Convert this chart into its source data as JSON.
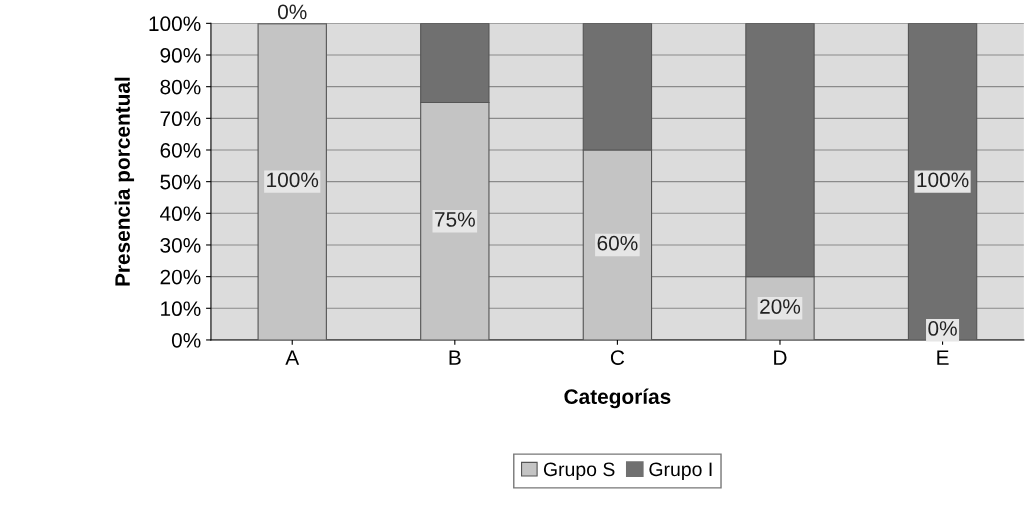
{
  "chart_data": {
    "type": "bar",
    "stacked": true,
    "xlabel": "Categorías",
    "ylabel": "Presencia porcentual",
    "categories": [
      "A",
      "B",
      "C",
      "D",
      "E"
    ],
    "series": [
      {
        "name": "Grupo S",
        "color": "#c4c4c4",
        "values": [
          100,
          75,
          60,
          20,
          0
        ],
        "value_labels": [
          "100%",
          "75%",
          "60%",
          "20%",
          "0%"
        ]
      },
      {
        "name": "Grupo I",
        "color": "#707070",
        "values": [
          0,
          25,
          40,
          80,
          100
        ],
        "value_labels": [
          "0%",
          null,
          null,
          null,
          "100%"
        ]
      }
    ],
    "ylim": [
      0,
      100
    ],
    "yticks": [
      {
        "value": 0,
        "label": "0%"
      },
      {
        "value": 10,
        "label": "10%"
      },
      {
        "value": 20,
        "label": "20%"
      },
      {
        "value": 30,
        "label": "30%"
      },
      {
        "value": 40,
        "label": "40%"
      },
      {
        "value": 50,
        "label": "50%"
      },
      {
        "value": 60,
        "label": "60%"
      },
      {
        "value": 70,
        "label": "70%"
      },
      {
        "value": 80,
        "label": "80%"
      },
      {
        "value": 90,
        "label": "90%"
      },
      {
        "value": 100,
        "label": "100%"
      }
    ],
    "grid": "y",
    "legend": "bottom"
  }
}
